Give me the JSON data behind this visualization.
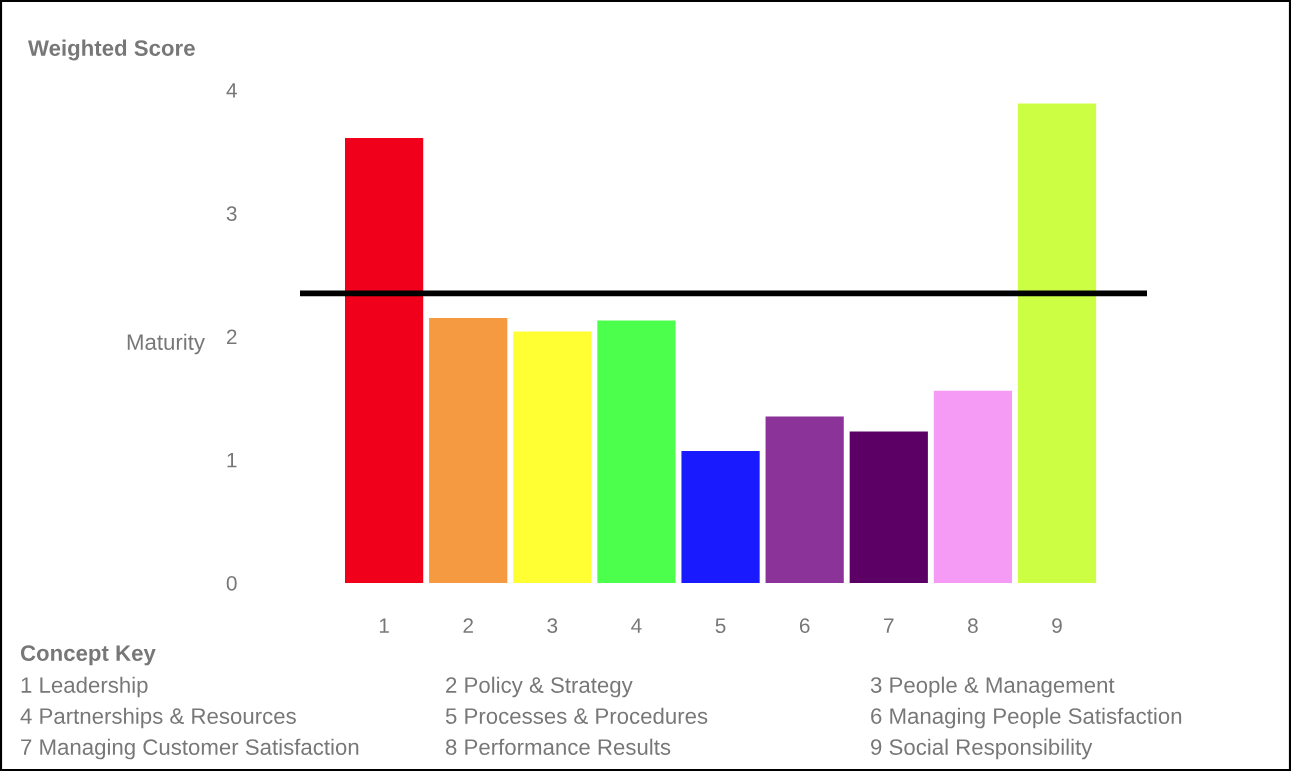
{
  "chart_data": {
    "type": "bar",
    "title": "Weighted Score",
    "ylabel": "Maturity",
    "categories": [
      "1",
      "2",
      "3",
      "4",
      "5",
      "6",
      "7",
      "8",
      "9"
    ],
    "values": [
      3.61,
      2.15,
      2.04,
      2.13,
      1.07,
      1.35,
      1.23,
      1.56,
      3.89
    ],
    "colors": [
      "#f0001a",
      "#f59a40",
      "#ffff33",
      "#4cff4c",
      "#1a1aff",
      "#8c3399",
      "#5c0066",
      "#f59af5",
      "#ccff44"
    ],
    "ylim": [
      0,
      4
    ],
    "yticks": [
      0,
      1,
      2,
      3,
      4
    ],
    "grid": false,
    "legend": false,
    "ref_lines": [
      {
        "axis": "y",
        "value": 2.35,
        "color": "#000000"
      }
    ],
    "annotations": [
      "Concept Key",
      "1 Leadership",
      "2 Policy & Strategy",
      "3 People & Management",
      "4 Partnerships & Resources",
      "5 Processes & Procedures",
      "6 Managing People Satisfaction",
      "7 Managing Customer Satisfaction",
      "8 Performance Results",
      "9 Social Responsibility"
    ]
  }
}
